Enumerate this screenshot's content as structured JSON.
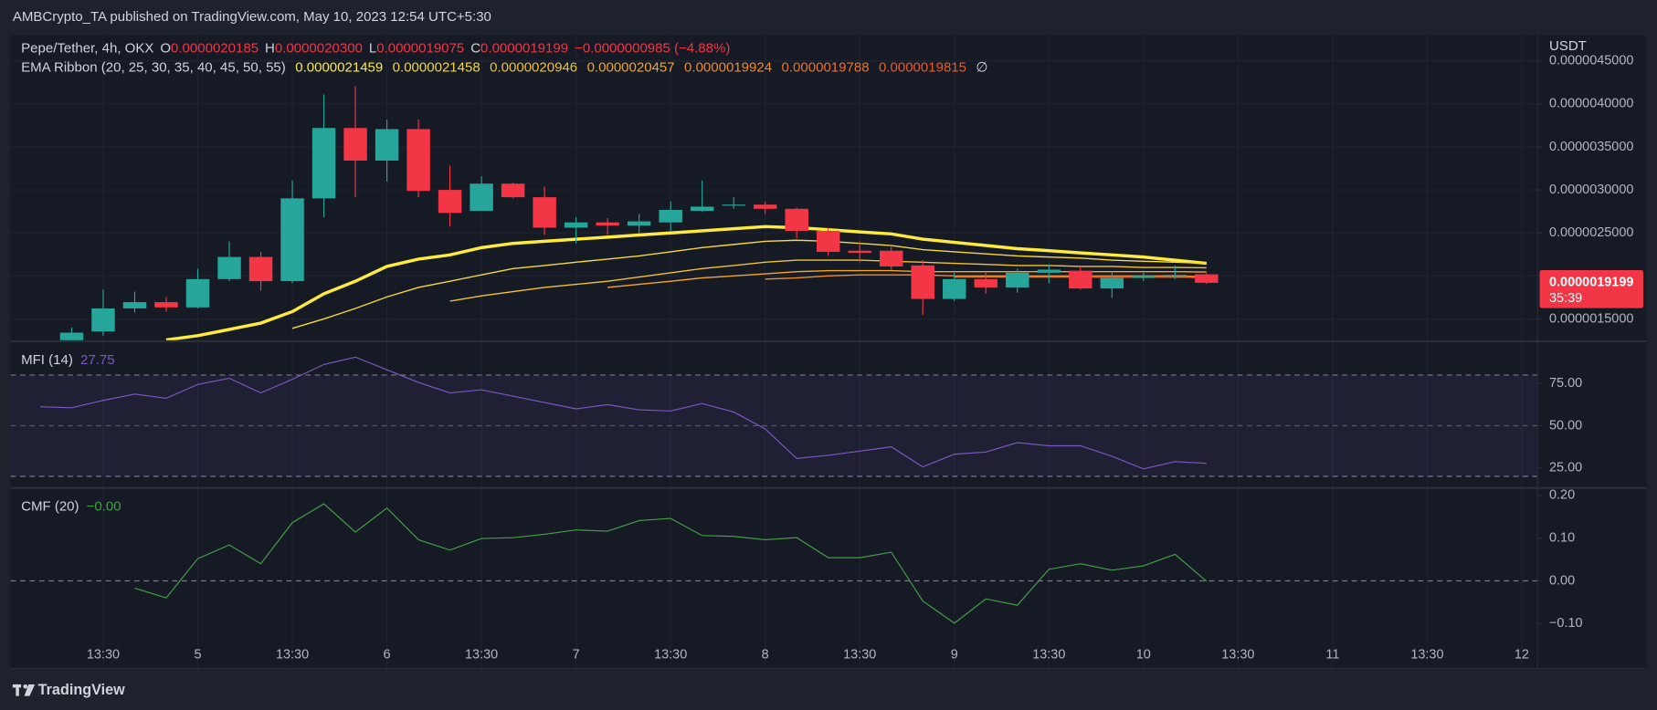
{
  "header": {
    "published": "AMBCrypto_TA published on TradingView.com, May 10, 2023 12:54 UTC+5:30"
  },
  "footer": {
    "brand": "TradingView"
  },
  "chart_data": [
    {
      "type": "candlestick",
      "symbol": "Pepe/Tether, 4h, OKX",
      "ohlc_legend": [
        {
          "key": "O",
          "value": "0.0000020185"
        },
        {
          "key": "H",
          "value": "0.0000020300"
        },
        {
          "key": "L",
          "value": "0.0000019075"
        },
        {
          "key": "C",
          "value": "0.0000019199"
        }
      ],
      "change": "−0.0000000985 (−4.88%)",
      "ribbon_title": "EMA Ribbon (20, 25, 30, 35, 40, 45, 50, 55)",
      "ribbon_missing": "∅",
      "axis_unit": "USDT",
      "last_price_label": "0.0000019199",
      "countdown": "35:39",
      "categories": [
        null,
        null,
        "13:30",
        null,
        null,
        "5",
        null,
        null,
        "13:30",
        null,
        null,
        "6",
        null,
        null,
        "13:30",
        null,
        null,
        "7",
        null,
        null,
        "13:30",
        null,
        null,
        "8",
        null,
        null,
        "13:30",
        null,
        null,
        "9",
        null,
        null,
        "13:30",
        null,
        null,
        "10",
        null,
        null,
        "13:30",
        null,
        null,
        "11",
        null,
        null,
        "13:30",
        null,
        null,
        "12"
      ],
      "open": [
        null,
        1.25e-06,
        1.354e-06,
        1.622e-06,
        1.695e-06,
        1.634e-06,
        1.963e-06,
        2.22e-06,
        1.939e-06,
        2.902e-06,
        3.72e-06,
        3.341e-06,
        3.707e-06,
        3e-06,
        2.756e-06,
        3.073e-06,
        2.915e-06,
        2.561e-06,
        2.622e-06,
        2.585e-06,
        2.622e-06,
        2.756e-06,
        2.817e-06,
        2.829e-06,
        2.78e-06,
        2.524e-06,
        2.293e-06,
        2.293e-06,
        2.122e-06,
        1.732e-06,
        1.963e-06,
        1.866e-06,
        2.037e-06,
        2.061e-06,
        1.854e-06,
        1.976e-06,
        2e-06,
        2.0185e-06,
        null,
        null,
        null,
        null,
        null,
        null,
        null,
        null,
        null,
        null
      ],
      "high": [
        null,
        1.402e-06,
        1.841e-06,
        1.817e-06,
        1.756e-06,
        2.085e-06,
        2.402e-06,
        2.28e-06,
        3.11e-06,
        4.11e-06,
        4.207e-06,
        3.817e-06,
        3.817e-06,
        3.28e-06,
        3.159e-06,
        3.085e-06,
        3.037e-06,
        2.683e-06,
        2.671e-06,
        2.72e-06,
        2.866e-06,
        3.11e-06,
        2.915e-06,
        2.866e-06,
        2.793e-06,
        2.561e-06,
        2.402e-06,
        2.354e-06,
        2.183e-06,
        2.037e-06,
        2.037e-06,
        2.085e-06,
        2.134e-06,
        2.11e-06,
        2.037e-06,
        2.061e-06,
        2.122e-06,
        2.03e-06,
        null,
        null,
        null,
        null,
        null,
        null,
        null,
        null,
        null,
        null
      ],
      "low": [
        null,
        1.244e-06,
        1.305e-06,
        1.573e-06,
        1.585e-06,
        1.622e-06,
        1.939e-06,
        1.829e-06,
        1.915e-06,
        2.683e-06,
        2.915e-06,
        3.098e-06,
        2.915e-06,
        2.573e-06,
        2.756e-06,
        2.902e-06,
        2.476e-06,
        2.378e-06,
        2.476e-06,
        2.5e-06,
        2.524e-06,
        2.744e-06,
        2.78e-06,
        2.72e-06,
        2.439e-06,
        2.232e-06,
        2.159e-06,
        2.073e-06,
        1.549e-06,
        1.707e-06,
        1.793e-06,
        1.805e-06,
        1.915e-06,
        1.841e-06,
        1.744e-06,
        1.939e-06,
        1.963e-06,
        1.9075e-06,
        null,
        null,
        null,
        null,
        null,
        null,
        null,
        null,
        null,
        null
      ],
      "close": [
        null,
        1.34e-06,
        1.622e-06,
        1.695e-06,
        1.634e-06,
        1.963e-06,
        2.22e-06,
        1.939e-06,
        2.902e-06,
        3.72e-06,
        3.341e-06,
        3.707e-06,
        2.988e-06,
        2.732e-06,
        3.073e-06,
        2.915e-06,
        2.561e-06,
        2.622e-06,
        2.585e-06,
        2.634e-06,
        2.768e-06,
        2.805e-06,
        2.829e-06,
        2.78e-06,
        2.524e-06,
        2.28e-06,
        2.268e-06,
        2.11e-06,
        1.732e-06,
        1.963e-06,
        1.866e-06,
        2.037e-06,
        2.073e-06,
        1.854e-06,
        1.976e-06,
        2e-06,
        2.012e-06,
        1.9199e-06,
        null,
        null,
        null,
        null,
        null,
        null,
        null,
        null,
        null,
        null
      ],
      "up_color": "#26a69a",
      "down_color": "#f23645",
      "series": [
        {
          "color": "#ffeb3b",
          "last_label": "0.0000021459",
          "values": [
            null,
            null,
            null,
            null,
            1.256e-06,
            1.305e-06,
            1.378e-06,
            1.451e-06,
            1.585e-06,
            1.793e-06,
            1.939e-06,
            2.11e-06,
            2.195e-06,
            2.244e-06,
            2.329e-06,
            2.378e-06,
            2.402e-06,
            2.427e-06,
            2.451e-06,
            2.476e-06,
            2.5e-06,
            2.524e-06,
            2.549e-06,
            2.573e-06,
            2.561e-06,
            2.537e-06,
            2.512e-06,
            2.488e-06,
            2.427e-06,
            2.39e-06,
            2.354e-06,
            2.317e-06,
            2.293e-06,
            2.268e-06,
            2.244e-06,
            2.22e-06,
            2.183e-06,
            2.1459e-06,
            null,
            null,
            null,
            null,
            null,
            null,
            null,
            null,
            null,
            null
          ]
        },
        {
          "color": "#f5d83a",
          "last_label": "0.0000021458",
          "values": [
            null,
            null,
            null,
            null,
            null,
            null,
            null,
            null,
            1.39e-06,
            1.5e-06,
            1.622e-06,
            1.756e-06,
            1.866e-06,
            1.939e-06,
            2.012e-06,
            2.085e-06,
            2.122e-06,
            2.159e-06,
            2.195e-06,
            2.232e-06,
            2.28e-06,
            2.329e-06,
            2.366e-06,
            2.402e-06,
            2.415e-06,
            2.402e-06,
            2.378e-06,
            2.354e-06,
            2.305e-06,
            2.28e-06,
            2.256e-06,
            2.232e-06,
            2.22e-06,
            2.207e-06,
            2.183e-06,
            2.171e-06,
            2.159e-06,
            2.1458e-06,
            null,
            null,
            null,
            null,
            null,
            null,
            null,
            null,
            null,
            null
          ]
        },
        {
          "color": "#f2c230",
          "last_label": "0.0000020946",
          "values": [
            null,
            null,
            null,
            null,
            null,
            null,
            null,
            null,
            null,
            null,
            null,
            null,
            null,
            1.707e-06,
            1.768e-06,
            1.817e-06,
            1.866e-06,
            1.902e-06,
            1.939e-06,
            1.988e-06,
            2.037e-06,
            2.085e-06,
            2.122e-06,
            2.159e-06,
            2.183e-06,
            2.183e-06,
            2.183e-06,
            2.171e-06,
            2.159e-06,
            2.146e-06,
            2.134e-06,
            2.122e-06,
            2.122e-06,
            2.11e-06,
            2.11e-06,
            2.098e-06,
            2.098e-06,
            2.0946e-06,
            null,
            null,
            null,
            null,
            null,
            null,
            null,
            null,
            null,
            null
          ]
        },
        {
          "color": "#f5a623",
          "last_label": "0.0000020457",
          "values": [
            null,
            null,
            null,
            null,
            null,
            null,
            null,
            null,
            null,
            null,
            null,
            null,
            null,
            null,
            null,
            null,
            null,
            null,
            1.866e-06,
            1.902e-06,
            1.939e-06,
            1.976e-06,
            2e-06,
            2.024e-06,
            2.049e-06,
            2.061e-06,
            2.061e-06,
            2.061e-06,
            2.049e-06,
            2.049e-06,
            2.049e-06,
            2.049e-06,
            2.049e-06,
            2.049e-06,
            2.049e-06,
            2.049e-06,
            2.049e-06,
            2.0457e-06,
            null,
            null,
            null,
            null,
            null,
            null,
            null,
            null,
            null,
            null
          ]
        },
        {
          "color": "#f28a26",
          "last_label": "0.0000019924",
          "values": [
            null,
            null,
            null,
            null,
            null,
            null,
            null,
            null,
            null,
            null,
            null,
            null,
            null,
            null,
            null,
            null,
            null,
            null,
            null,
            null,
            null,
            null,
            null,
            1.963e-06,
            1.976e-06,
            2e-06,
            2.012e-06,
            2.012e-06,
            2.012e-06,
            2e-06,
            2e-06,
            2e-06,
            2e-06,
            2e-06,
            2e-06,
            2e-06,
            2e-06,
            1.9924e-06,
            null,
            null,
            null,
            null,
            null,
            null,
            null,
            null,
            null,
            null
          ]
        },
        {
          "color": "#f27126",
          "last_label": "0.0000019788",
          "values": [
            null,
            null,
            null,
            null,
            null,
            null,
            null,
            null,
            null,
            null,
            null,
            null,
            null,
            null,
            null,
            null,
            null,
            null,
            null,
            null,
            null,
            null,
            null,
            null,
            null,
            null,
            null,
            null,
            null,
            1.988e-06,
            1.988e-06,
            1.988e-06,
            1.988e-06,
            1.988e-06,
            1.988e-06,
            1.988e-06,
            1.988e-06,
            1.9788e-06,
            null,
            null,
            null,
            null,
            null,
            null,
            null,
            null,
            null,
            null
          ]
        },
        {
          "color": "#f05a28",
          "last_label": "0.0000019815",
          "values": [
            null,
            null,
            null,
            null,
            null,
            null,
            null,
            null,
            null,
            null,
            null,
            null,
            null,
            null,
            null,
            null,
            null,
            null,
            null,
            null,
            null,
            null,
            null,
            null,
            null,
            null,
            null,
            null,
            null,
            null,
            null,
            null,
            null,
            1.988e-06,
            1.988e-06,
            1.988e-06,
            1.988e-06,
            1.9815e-06,
            null,
            null,
            null,
            null,
            null,
            null,
            null,
            null,
            null,
            null
          ]
        }
      ],
      "ylim": [
        1.24e-06,
        4.8e-06
      ],
      "yticks": [
        {
          "value": 1.5e-06,
          "label": "0.0000015000"
        },
        {
          "value": 2e-06,
          "label": "0.0000020000"
        },
        {
          "value": 2.5e-06,
          "label": "0.0000025000"
        },
        {
          "value": 3e-06,
          "label": "0.0000030000"
        },
        {
          "value": 3.5e-06,
          "label": "0.0000035000"
        },
        {
          "value": 4e-06,
          "label": "0.0000040000"
        },
        {
          "value": 4.5e-06,
          "label": "0.0000045000"
        }
      ],
      "grid": true
    },
    {
      "type": "line",
      "title": "MFI (14)",
      "color": "#7e57c2",
      "values": [
        61.25,
        60.6,
        65,
        68.75,
        66.25,
        74.4,
        78.1,
        69.4,
        77.5,
        86.25,
        90.6,
        83.1,
        75.6,
        69.4,
        71.25,
        67.5,
        63.75,
        60,
        62.5,
        59.4,
        58.75,
        63.1,
        58.1,
        48.1,
        30.6,
        32.5,
        35,
        37.5,
        25.6,
        33.1,
        34.4,
        40,
        38.1,
        38.1,
        31.9,
        24.4,
        28.75,
        27.75,
        null,
        null,
        null,
        null,
        null,
        null,
        null,
        null,
        null,
        null
      ],
      "ylim": [
        13.1,
        100
      ],
      "yticks": [
        {
          "value": 25,
          "label": "25.00"
        },
        {
          "value": 50,
          "label": "50.00"
        },
        {
          "value": 75,
          "label": "75.00"
        }
      ],
      "bands": [
        20,
        80
      ],
      "midline": 50
    },
    {
      "type": "line",
      "title": "CMF (20)",
      "current_label": "−0.00",
      "color": "#43a047",
      "values": [
        null,
        null,
        null,
        -0.017,
        -0.04,
        0.052,
        0.084,
        0.04,
        0.136,
        0.18,
        0.114,
        0.17,
        0.096,
        0.072,
        0.099,
        0.101,
        0.109,
        0.119,
        0.116,
        0.141,
        0.146,
        0.106,
        0.104,
        0.096,
        0.101,
        0.054,
        0.054,
        0.067,
        -0.047,
        -0.099,
        -0.042,
        -0.057,
        0.027,
        0.04,
        0.025,
        0.035,
        0.062,
        -0.001,
        null,
        null,
        null,
        null,
        null,
        null,
        null,
        null,
        null,
        null
      ],
      "ylim": [
        -0.205,
        0.217
      ],
      "yticks": [
        {
          "value": -0.1,
          "label": "−0.10"
        },
        {
          "value": 0,
          "label": "0.00"
        },
        {
          "value": 0.1,
          "label": "0.10"
        },
        {
          "value": 0.2,
          "label": "0.20"
        }
      ],
      "zero_line": 0
    }
  ]
}
